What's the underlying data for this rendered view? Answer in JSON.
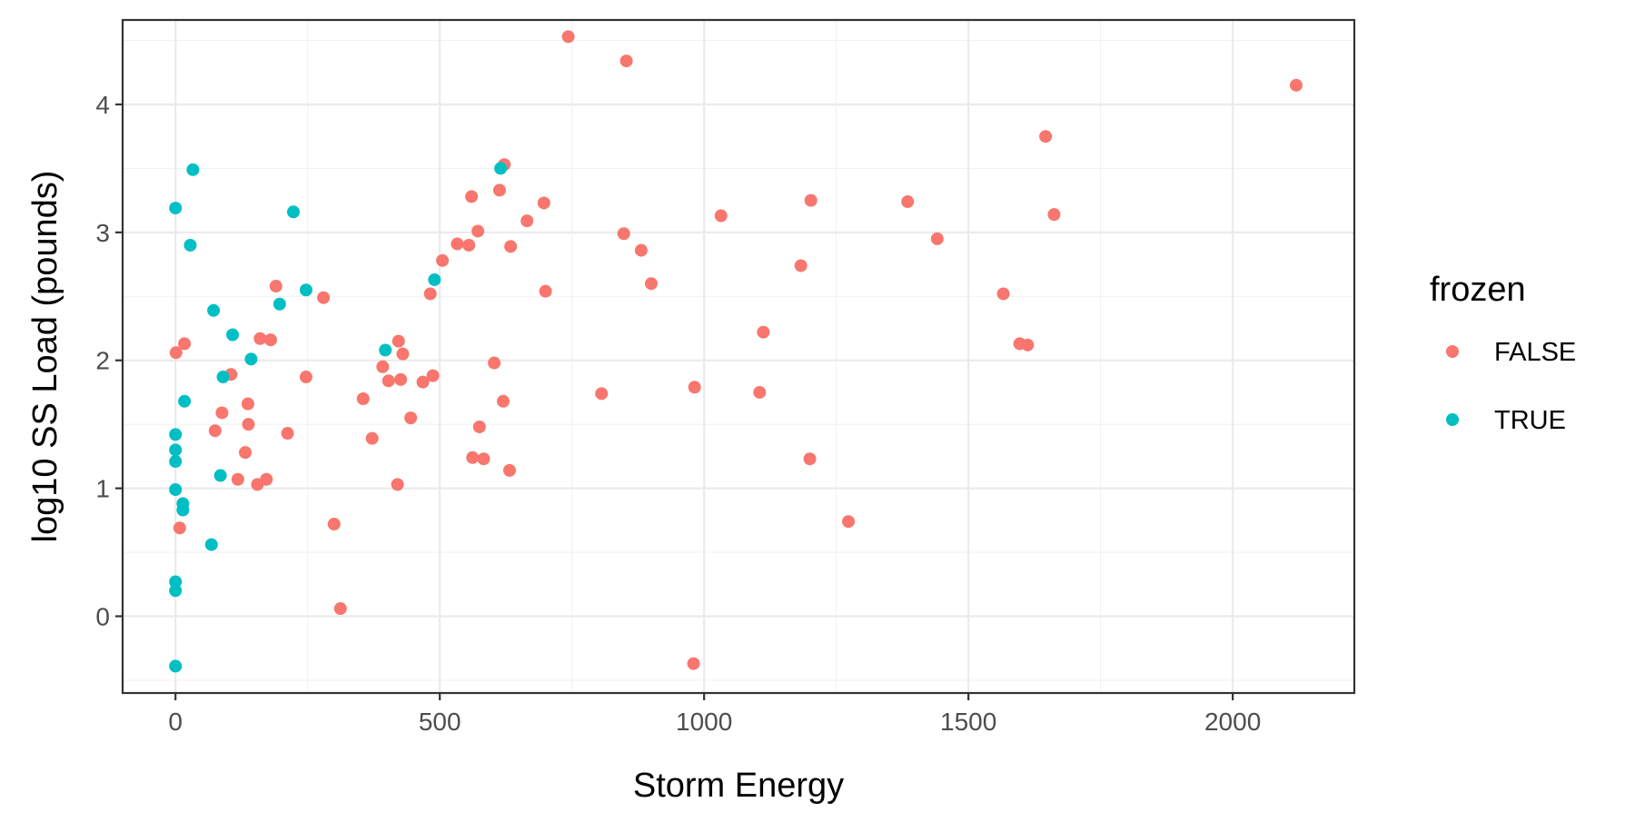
{
  "chart_data": {
    "type": "scatter",
    "xlabel": "Storm Energy",
    "ylabel": "log10 SS Load (pounds)",
    "xlim": [
      -100,
      2230
    ],
    "ylim": [
      -0.6,
      4.66
    ],
    "x_ticks": [
      0,
      500,
      1000,
      1500,
      2000
    ],
    "y_ticks": [
      0,
      1,
      2,
      3,
      4
    ],
    "x_tick_labels": [
      "0",
      "500",
      "1000",
      "1500",
      "2000"
    ],
    "y_tick_labels": [
      "0",
      "1",
      "2",
      "3",
      "4"
    ],
    "grid": true,
    "legend": {
      "title": "frozen",
      "placement": "right",
      "entries": [
        {
          "label": "FALSE",
          "color": "#f8766d"
        },
        {
          "label": "TRUE",
          "color": "#00bfc4"
        }
      ]
    },
    "series": [
      {
        "name": "FALSE",
        "color": "#f8766d",
        "points": [
          [
            1,
            2.06
          ],
          [
            8,
            0.69
          ],
          [
            17,
            2.13
          ],
          [
            75,
            1.45
          ],
          [
            88,
            1.59
          ],
          [
            105,
            1.89
          ],
          [
            118,
            1.07
          ],
          [
            132,
            1.28
          ],
          [
            137,
            1.66
          ],
          [
            138,
            1.5
          ],
          [
            155,
            1.03
          ],
          [
            160,
            2.17
          ],
          [
            172,
            1.07
          ],
          [
            180,
            2.16
          ],
          [
            190,
            2.58
          ],
          [
            212,
            1.43
          ],
          [
            247,
            1.87
          ],
          [
            280,
            2.49
          ],
          [
            300,
            0.72
          ],
          [
            312,
            0.06
          ],
          [
            355,
            1.7
          ],
          [
            372,
            1.39
          ],
          [
            392,
            1.95
          ],
          [
            403,
            1.84
          ],
          [
            420,
            1.03
          ],
          [
            422,
            2.15
          ],
          [
            426,
            1.85
          ],
          [
            430,
            2.05
          ],
          [
            445,
            1.55
          ],
          [
            468,
            1.83
          ],
          [
            482,
            2.52
          ],
          [
            487,
            1.88
          ],
          [
            505,
            2.78
          ],
          [
            533,
            2.91
          ],
          [
            555,
            2.9
          ],
          [
            560,
            3.28
          ],
          [
            562,
            1.24
          ],
          [
            572,
            3.01
          ],
          [
            575,
            1.48
          ],
          [
            583,
            1.23
          ],
          [
            603,
            1.98
          ],
          [
            613,
            3.33
          ],
          [
            620,
            1.68
          ],
          [
            622,
            3.53
          ],
          [
            632,
            1.14
          ],
          [
            634,
            2.89
          ],
          [
            665,
            3.09
          ],
          [
            697,
            3.23
          ],
          [
            700,
            2.54
          ],
          [
            743,
            4.53
          ],
          [
            806,
            1.74
          ],
          [
            848,
            2.99
          ],
          [
            853,
            4.34
          ],
          [
            881,
            2.86
          ],
          [
            900,
            2.6
          ],
          [
            980,
            -0.37
          ],
          [
            982,
            1.79
          ],
          [
            1032,
            3.13
          ],
          [
            1105,
            1.75
          ],
          [
            1112,
            2.22
          ],
          [
            1183,
            2.74
          ],
          [
            1200,
            1.23
          ],
          [
            1202,
            3.25
          ],
          [
            1273,
            0.74
          ],
          [
            1385,
            3.24
          ],
          [
            1441,
            2.95
          ],
          [
            1566,
            2.52
          ],
          [
            1597,
            2.13
          ],
          [
            1612,
            2.12
          ],
          [
            1646,
            3.75
          ],
          [
            1662,
            3.14
          ],
          [
            2120,
            4.15
          ]
        ]
      },
      {
        "name": "TRUE",
        "color": "#00bfc4",
        "points": [
          [
            0,
            -0.39
          ],
          [
            0,
            0.2
          ],
          [
            0,
            0.27
          ],
          [
            0,
            0.99
          ],
          [
            0,
            1.21
          ],
          [
            0,
            1.3
          ],
          [
            0,
            1.42
          ],
          [
            0,
            3.19
          ],
          [
            14,
            0.83
          ],
          [
            14,
            0.88
          ],
          [
            17,
            1.68
          ],
          [
            28,
            2.9
          ],
          [
            33,
            3.49
          ],
          [
            68,
            0.56
          ],
          [
            72,
            2.39
          ],
          [
            85,
            1.1
          ],
          [
            90,
            1.87
          ],
          [
            108,
            2.2
          ],
          [
            143,
            2.01
          ],
          [
            197,
            2.44
          ],
          [
            223,
            3.16
          ],
          [
            247,
            2.55
          ],
          [
            397,
            2.08
          ],
          [
            490,
            2.63
          ],
          [
            615,
            3.5
          ]
        ]
      }
    ]
  }
}
